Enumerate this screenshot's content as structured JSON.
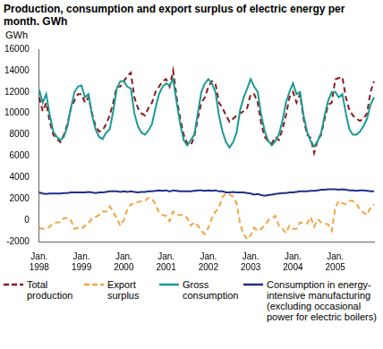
{
  "chart_data": {
    "type": "line",
    "title": "Production, consumption and export surplus of electric energy per month. GWh",
    "ylabel": "GWh",
    "categories": [
      "Jan. 1998",
      null,
      null,
      null,
      null,
      null,
      null,
      null,
      null,
      null,
      null,
      null,
      "Jan. 1999",
      null,
      null,
      null,
      null,
      null,
      null,
      null,
      null,
      null,
      null,
      null,
      "Jan. 2000",
      null,
      null,
      null,
      null,
      null,
      null,
      null,
      null,
      null,
      null,
      null,
      "Jan. 2001",
      null,
      null,
      null,
      null,
      null,
      null,
      null,
      null,
      null,
      null,
      null,
      "Jan. 2002",
      null,
      null,
      null,
      null,
      null,
      null,
      null,
      null,
      null,
      null,
      null,
      "Jan. 2003",
      null,
      null,
      null,
      null,
      null,
      null,
      null,
      null,
      null,
      null,
      null,
      "Jan. 2004",
      null,
      null,
      null,
      null,
      null,
      null,
      null,
      null,
      null,
      null,
      null,
      "Jan. 2005",
      null,
      null,
      null,
      null,
      null,
      null,
      null,
      null,
      null,
      null,
      null
    ],
    "series": [
      {
        "name": "Total production",
        "color": "#8b1a1a",
        "line_style": "dashed",
        "values": [
          11500,
          10200,
          11000,
          9200,
          8000,
          7600,
          7300,
          8000,
          9000,
          10500,
          11200,
          11800,
          11800,
          11000,
          11500,
          10000,
          8800,
          8300,
          8400,
          9000,
          9800,
          11000,
          12500,
          12500,
          13000,
          13500,
          13800,
          11500,
          10500,
          10000,
          9800,
          10500,
          11000,
          12000,
          12500,
          13000,
          13200,
          12500,
          14000,
          11500,
          9500,
          8000,
          7200,
          7000,
          7800,
          9500,
          11000,
          11500,
          12500,
          13000,
          12800,
          11000,
          10500,
          9800,
          9200,
          9500,
          9800,
          10000,
          10200,
          10500,
          11800,
          11800,
          11000,
          9000,
          7800,
          7400,
          7200,
          7800,
          7500,
          8500,
          9800,
          11500,
          12000,
          11000,
          11800,
          9500,
          8000,
          7700,
          6300,
          7500,
          8000,
          9500,
          10800,
          11000,
          13200,
          13300,
          13400,
          11500,
          10300,
          9800,
          9500,
          9300,
          9500,
          10000,
          12000,
          13000
        ]
      },
      {
        "name": "Export surplus",
        "color": "#f5a340",
        "line_style": "dashed",
        "values": [
          -700,
          -800,
          -800,
          -600,
          -300,
          -200,
          -200,
          200,
          200,
          0,
          -800,
          -700,
          -800,
          -500,
          -300,
          200,
          300,
          500,
          800,
          800,
          1300,
          800,
          200,
          -500,
          0,
          1000,
          1500,
          1500,
          1700,
          1800,
          1800,
          2100,
          2000,
          1500,
          700,
          500,
          400,
          -100,
          800,
          500,
          500,
          500,
          200,
          -500,
          -200,
          -500,
          -1000,
          -1300,
          -700,
          200,
          800,
          1200,
          2200,
          2500,
          2400,
          2200,
          1600,
          -300,
          -1300,
          -1800,
          -1400,
          -700,
          -1000,
          -800,
          -500,
          0,
          200,
          400,
          -500,
          -800,
          -1200,
          -500,
          -800,
          -800,
          -200,
          -300,
          -300,
          300,
          -600,
          100,
          -200,
          -300,
          -400,
          -1000,
          1200,
          1800,
          1600,
          1500,
          1800,
          1800,
          1500,
          1000,
          700,
          500,
          1200,
          1500
        ]
      },
      {
        "name": "Gross consumption",
        "color": "#1a9a96",
        "line_style": "solid",
        "values": [
          12200,
          11000,
          11800,
          9800,
          8300,
          7800,
          7500,
          7800,
          8800,
          10500,
          12000,
          12500,
          12600,
          11500,
          11800,
          9800,
          8500,
          7800,
          7600,
          8200,
          8500,
          10200,
          12300,
          13000,
          13000,
          12500,
          12300,
          10000,
          8800,
          8200,
          8000,
          8400,
          9000,
          10500,
          11800,
          12500,
          12800,
          12600,
          13200,
          11000,
          9000,
          7500,
          7000,
          7500,
          8000,
          10000,
          12000,
          12800,
          13200,
          12800,
          12000,
          9800,
          8300,
          7300,
          6800,
          7300,
          8200,
          10300,
          11500,
          12300,
          13200,
          12500,
          12000,
          9800,
          8300,
          7400,
          7000,
          7400,
          8000,
          9300,
          11000,
          12000,
          12800,
          11800,
          12000,
          9800,
          8300,
          7400,
          6900,
          7400,
          8200,
          9800,
          11200,
          12000,
          12000,
          11500,
          11800,
          10000,
          8500,
          8000,
          8000,
          8300,
          8800,
          9500,
          10800,
          11500
        ]
      },
      {
        "name": "Consumption in energy-intensive manufacturing (excluding occasional power for electric boilers)",
        "color": "#1f2f8a",
        "line_style": "solid",
        "values": [
          2600,
          2500,
          2450,
          2500,
          2500,
          2500,
          2500,
          2550,
          2550,
          2600,
          2600,
          2600,
          2600,
          2600,
          2650,
          2600,
          2550,
          2600,
          2600,
          2650,
          2700,
          2700,
          2700,
          2650,
          2700,
          2650,
          2700,
          2650,
          2600,
          2650,
          2650,
          2700,
          2700,
          2750,
          2800,
          2750,
          2800,
          2700,
          2800,
          2750,
          2700,
          2700,
          2700,
          2700,
          2750,
          2800,
          2800,
          2750,
          2800,
          2750,
          2800,
          2700,
          2700,
          2600,
          2600,
          2650,
          2600,
          2600,
          2600,
          2550,
          2500,
          2400,
          2450,
          2350,
          2300,
          2350,
          2400,
          2450,
          2500,
          2550,
          2550,
          2600,
          2600,
          2650,
          2700,
          2700,
          2700,
          2750,
          2750,
          2800,
          2850,
          2850,
          2900,
          2900,
          2900,
          2850,
          2900,
          2850,
          2800,
          2800,
          2750,
          2800,
          2800,
          2750,
          2700,
          2700
        ]
      }
    ],
    "ylim": [
      -2000,
      16000
    ],
    "yticks": [
      -2000,
      0,
      2000,
      4000,
      6000,
      8000,
      10000,
      12000,
      14000,
      16000
    ],
    "grid": false,
    "legend": "bottom"
  }
}
